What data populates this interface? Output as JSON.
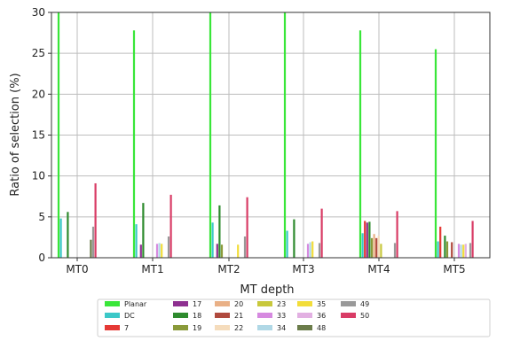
{
  "chart_data": {
    "type": "bar",
    "xlabel": "MT depth",
    "ylabel": "Ratio of selection (%)",
    "ylim": [
      0,
      30
    ],
    "yticks": [
      0,
      5,
      10,
      15,
      20,
      25,
      30
    ],
    "grid": true,
    "legend_position": "bottom",
    "categories": [
      "MT0",
      "MT1",
      "MT2",
      "MT3",
      "MT4",
      "MT5"
    ],
    "series": [
      {
        "name": "Planar",
        "color": "#39e639",
        "values": [
          30,
          27.8,
          30,
          30,
          27.8,
          25.5
        ]
      },
      {
        "name": "DC",
        "color": "#3cc8c8",
        "values": [
          4.8,
          4.1,
          4.3,
          3.3,
          3.0,
          2.0
        ]
      },
      {
        "name": "7",
        "color": "#e53935",
        "values": [
          0,
          0,
          0,
          0,
          4.5,
          3.8
        ]
      },
      {
        "name": "17",
        "color": "#8e3090",
        "values": [
          0,
          1.6,
          1.7,
          0,
          4.3,
          0
        ]
      },
      {
        "name": "18",
        "color": "#2e8b2e",
        "values": [
          5.6,
          6.7,
          6.4,
          4.7,
          4.4,
          2.7
        ]
      },
      {
        "name": "19",
        "color": "#8a9a3a",
        "values": [
          0,
          0,
          1.6,
          0,
          2.4,
          2.0
        ]
      },
      {
        "name": "20",
        "color": "#e9b086",
        "values": [
          0,
          0,
          0,
          0,
          2.9,
          0
        ]
      },
      {
        "name": "21",
        "color": "#b04a3e",
        "values": [
          0,
          0,
          0,
          0,
          2.4,
          1.9
        ]
      },
      {
        "name": "22",
        "color": "#f5dcbc",
        "values": [
          0,
          0,
          0,
          0,
          2.7,
          0
        ]
      },
      {
        "name": "23",
        "color": "#c8c83c",
        "values": [
          0,
          0,
          0,
          0,
          1.7,
          0
        ]
      },
      {
        "name": "33",
        "color": "#d68ae0",
        "values": [
          0,
          1.7,
          0,
          1.7,
          0,
          1.7
        ]
      },
      {
        "name": "34",
        "color": "#b0d8e6",
        "values": [
          0,
          1.8,
          0,
          1.9,
          0,
          1.6
        ]
      },
      {
        "name": "35",
        "color": "#f2dd3a",
        "values": [
          0,
          1.7,
          1.6,
          2.0,
          0,
          1.6
        ]
      },
      {
        "name": "36",
        "color": "#e2b0e2",
        "values": [
          0,
          0,
          0,
          0,
          0,
          1.7
        ]
      },
      {
        "name": "48",
        "color": "#6b7c4a",
        "values": [
          2.2,
          0,
          0,
          0,
          0,
          0
        ]
      },
      {
        "name": "49",
        "color": "#999999",
        "values": [
          3.8,
          2.6,
          2.6,
          1.8,
          1.8,
          1.8
        ]
      },
      {
        "name": "50",
        "color": "#d93c66",
        "values": [
          9.1,
          7.7,
          7.4,
          6.0,
          5.7,
          4.5
        ]
      }
    ]
  }
}
